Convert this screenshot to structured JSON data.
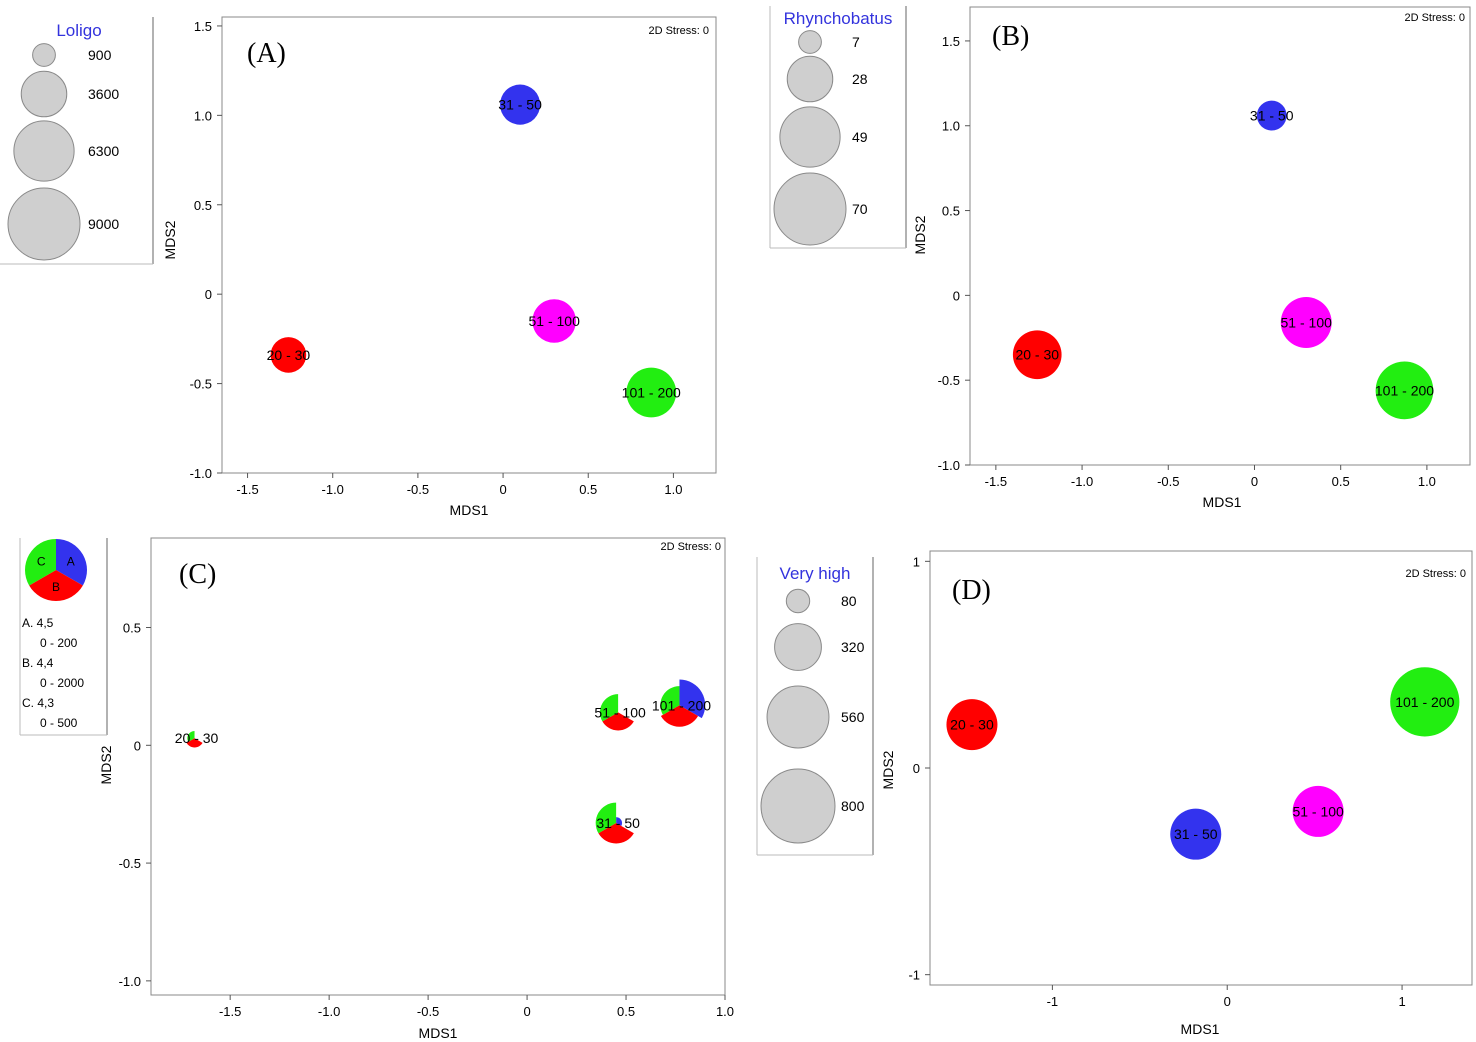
{
  "chart_data": [
    {
      "type": "scatter",
      "panel_label": "(A)",
      "stress": "2D Stress: 0",
      "xlabel": "MDS1",
      "ylabel": "MDS2",
      "xlim": [
        -1.65,
        1.25
      ],
      "ylim": [
        -1.0,
        1.55
      ],
      "xticks": [
        -1.5,
        -1.0,
        -0.5,
        0,
        0.5,
        1.0
      ],
      "xtick_labels": [
        "-1.5",
        "-1.0",
        "-0.5",
        "0",
        "0.5",
        "1.0"
      ],
      "yticks": [
        -1.0,
        -0.5,
        0,
        0.5,
        1.0,
        1.5
      ],
      "ytick_labels": [
        "-1.0",
        "-0.5",
        "0",
        "0.5",
        "1.0",
        "1.5"
      ],
      "bubble_legend": {
        "title": "Loligo",
        "title_color": "#3333dd",
        "sizes": [
          900,
          3600,
          6300,
          9000
        ],
        "labels": [
          "900",
          "3600",
          "6300",
          "9000"
        ]
      },
      "points": [
        {
          "label": "20 - 30",
          "x": -1.26,
          "y": -0.34,
          "size": 2200,
          "color": "#ff0000"
        },
        {
          "label": "31 - 50",
          "x": 0.1,
          "y": 1.06,
          "size": 2800,
          "color": "#3333ee"
        },
        {
          "label": "51 - 100",
          "x": 0.3,
          "y": -0.15,
          "size": 3300,
          "color": "#ff00ff"
        },
        {
          "label": "101 - 200",
          "x": 0.87,
          "y": -0.55,
          "size": 4300,
          "color": "#22ee11"
        }
      ]
    },
    {
      "type": "scatter",
      "panel_label": "(B)",
      "stress": "2D Stress: 0",
      "xlabel": "MDS1",
      "ylabel": "MDS2",
      "xlim": [
        -1.65,
        1.25
      ],
      "ylim": [
        -1.0,
        1.7
      ],
      "xticks": [
        -1.5,
        -1.0,
        -0.5,
        0,
        0.5,
        1.0
      ],
      "xtick_labels": [
        "-1.5",
        "-1.0",
        "-0.5",
        "0",
        "0.5",
        "1.0"
      ],
      "yticks": [
        -1.0,
        -0.5,
        0,
        0.5,
        1.0,
        1.5
      ],
      "ytick_labels": [
        "-1.0",
        "-0.5",
        "0",
        "0.5",
        "1.0",
        "1.5"
      ],
      "bubble_legend": {
        "title": "Rhynchobatus",
        "title_color": "#3333dd",
        "sizes": [
          7,
          28,
          49,
          70
        ],
        "labels": [
          "7",
          "28",
          "49",
          "70"
        ]
      },
      "points": [
        {
          "label": "20 - 30",
          "x": -1.26,
          "y": -0.35,
          "size": 32,
          "color": "#ff0000"
        },
        {
          "label": "31 - 50",
          "x": 0.1,
          "y": 1.06,
          "size": 12,
          "color": "#3333ee"
        },
        {
          "label": "51 - 100",
          "x": 0.3,
          "y": -0.16,
          "size": 35,
          "color": "#ff00ff"
        },
        {
          "label": "101 - 200",
          "x": 0.87,
          "y": -0.56,
          "size": 45,
          "color": "#22ee11"
        }
      ]
    },
    {
      "type": "scatter",
      "panel_label": "(C)",
      "stress": "2D Stress: 0",
      "xlabel": "MDS1",
      "ylabel": "MDS2",
      "xlim": [
        -1.9,
        1.0
      ],
      "ylim": [
        -1.06,
        0.88
      ],
      "xticks": [
        -1.5,
        -1.0,
        -0.5,
        0,
        0.5,
        1.0
      ],
      "xtick_labels": [
        "-1.5",
        "-1.0",
        "-0.5",
        "0",
        "0.5",
        "1.0"
      ],
      "yticks": [
        -1.0,
        -0.5,
        0,
        0.5
      ],
      "ytick_labels": [
        "-1.0",
        "-0.5",
        "0",
        "0.5"
      ],
      "pie_legend": {
        "segments": [
          {
            "key": "A",
            "color": "#3333ee"
          },
          {
            "key": "B",
            "color": "#ff0000"
          },
          {
            "key": "C",
            "color": "#22ee11"
          }
        ],
        "entries": [
          {
            "name": "A. 4,5",
            "range": "0 - 200"
          },
          {
            "name": "B. 4,4",
            "range": "0 - 2000"
          },
          {
            "name": "C. 4,3",
            "range": "0 - 500"
          }
        ]
      },
      "points": [
        {
          "label": "20 - 30",
          "x": -1.68,
          "y": 0.03,
          "A": 0,
          "B": 0.28,
          "C": 0.22
        },
        {
          "label": "31 - 50",
          "x": 0.45,
          "y": -0.33,
          "A": 0.18,
          "B": 0.62,
          "C": 0.62
        },
        {
          "label": "51 - 100",
          "x": 0.46,
          "y": 0.14,
          "A": 0,
          "B": 0.55,
          "C": 0.55
        },
        {
          "label": "101 - 200",
          "x": 0.77,
          "y": 0.17,
          "A": 0.78,
          "B": 0.65,
          "C": 0.58
        }
      ]
    },
    {
      "type": "scatter",
      "panel_label": "(D)",
      "stress": "2D Stress: 0",
      "xlabel": "MDS1",
      "ylabel": "MDS2",
      "xlim": [
        -1.7,
        1.4
      ],
      "ylim": [
        -1.05,
        1.05
      ],
      "xticks": [
        -1,
        0,
        1
      ],
      "xtick_labels": [
        "-1",
        "0",
        "1"
      ],
      "yticks": [
        -1,
        0,
        1
      ],
      "ytick_labels": [
        "-1",
        "0",
        "1"
      ],
      "bubble_legend": {
        "title": "Very high",
        "title_color": "#3333dd",
        "sizes": [
          80,
          320,
          560,
          800
        ],
        "labels": [
          "80",
          "320",
          "560",
          "800"
        ]
      },
      "points": [
        {
          "label": "20 - 30",
          "x": -1.46,
          "y": 0.21,
          "size": 380,
          "color": "#ff0000"
        },
        {
          "label": "31 - 50",
          "x": -0.18,
          "y": -0.32,
          "size": 380,
          "color": "#3333ee"
        },
        {
          "label": "51 - 100",
          "x": 0.52,
          "y": -0.21,
          "size": 380,
          "color": "#ff00ff"
        },
        {
          "label": "101 - 200",
          "x": 1.13,
          "y": 0.32,
          "size": 700,
          "color": "#22ee11"
        }
      ]
    }
  ]
}
